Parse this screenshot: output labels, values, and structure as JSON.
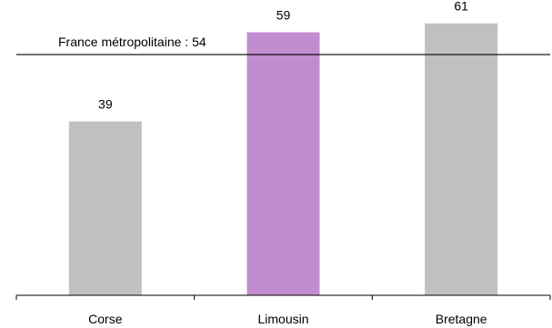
{
  "chart_data": {
    "type": "bar",
    "categories": [
      "Corse",
      "Limousin",
      "Bretagne"
    ],
    "values": [
      39,
      59,
      61
    ],
    "colors": [
      "#c0c0c0",
      "#c38ccf",
      "#c0c0c0"
    ],
    "reference_line": {
      "value": 54,
      "label": "France métropolitaine : 54"
    },
    "ylim": [
      0,
      64
    ],
    "title": "",
    "xlabel": "",
    "ylabel": "",
    "grid": false
  }
}
